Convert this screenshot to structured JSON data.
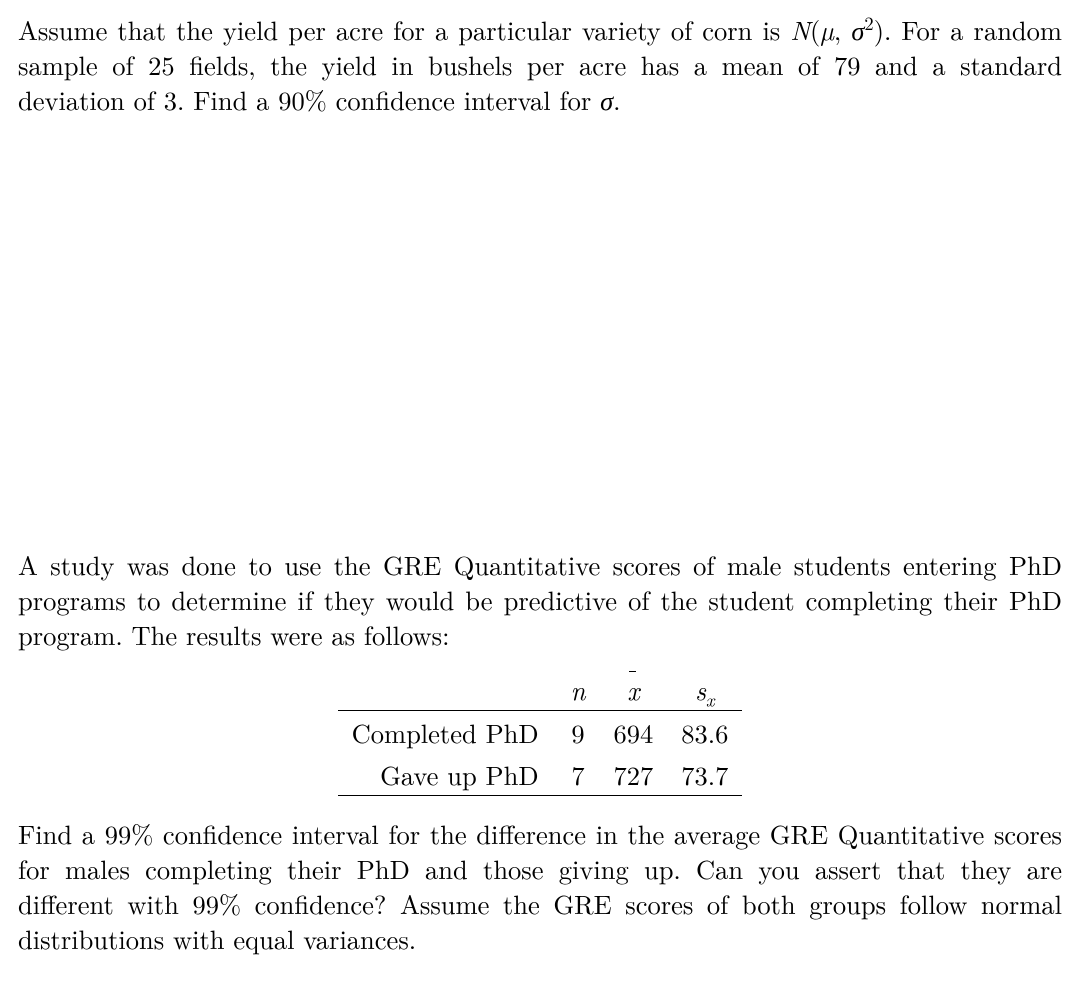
{
  "problem1": {
    "text_parts": {
      "p1a": "Assume that the yield per acre for a particular variety of corn is ",
      "dist": "N",
      "mu": "µ",
      "sigma": "σ",
      "sq": "2",
      "p1b": ". For a random sample of 25 fields, the yield in bushels per acre has a mean of 79 and a standard deviation of 3. Find a 90% confidence interval for ",
      "sigma2": "σ",
      "p1c": "."
    }
  },
  "problem2": {
    "intro": "A study was done to use the GRE Quantitative scores of male students entering PhD programs to determine if they would be predictive of the student completing their PhD program. The results were as follows:",
    "table": {
      "columns": {
        "blank": "",
        "n": "n",
        "xbar": "x",
        "sx_s": "s",
        "sx_sub": "x"
      },
      "rows": [
        {
          "label": "Completed PhD",
          "n": "9",
          "xbar": "694",
          "sx": "83.6"
        },
        {
          "label": "Gave up PhD",
          "n": "7",
          "xbar": "727",
          "sx": "73.7"
        }
      ]
    },
    "conclusion": "Find a 99% confidence interval for the difference in the average GRE Quantitative scores for males completing their PhD and those giving up. Can you assert that they are different with 99% confidence? Assume the GRE scores of both groups follow normal distributions with equal variances."
  },
  "style": {
    "font_size_pt": 20,
    "text_color": "#000000",
    "background_color": "#ffffff",
    "rule_color": "#000000"
  }
}
